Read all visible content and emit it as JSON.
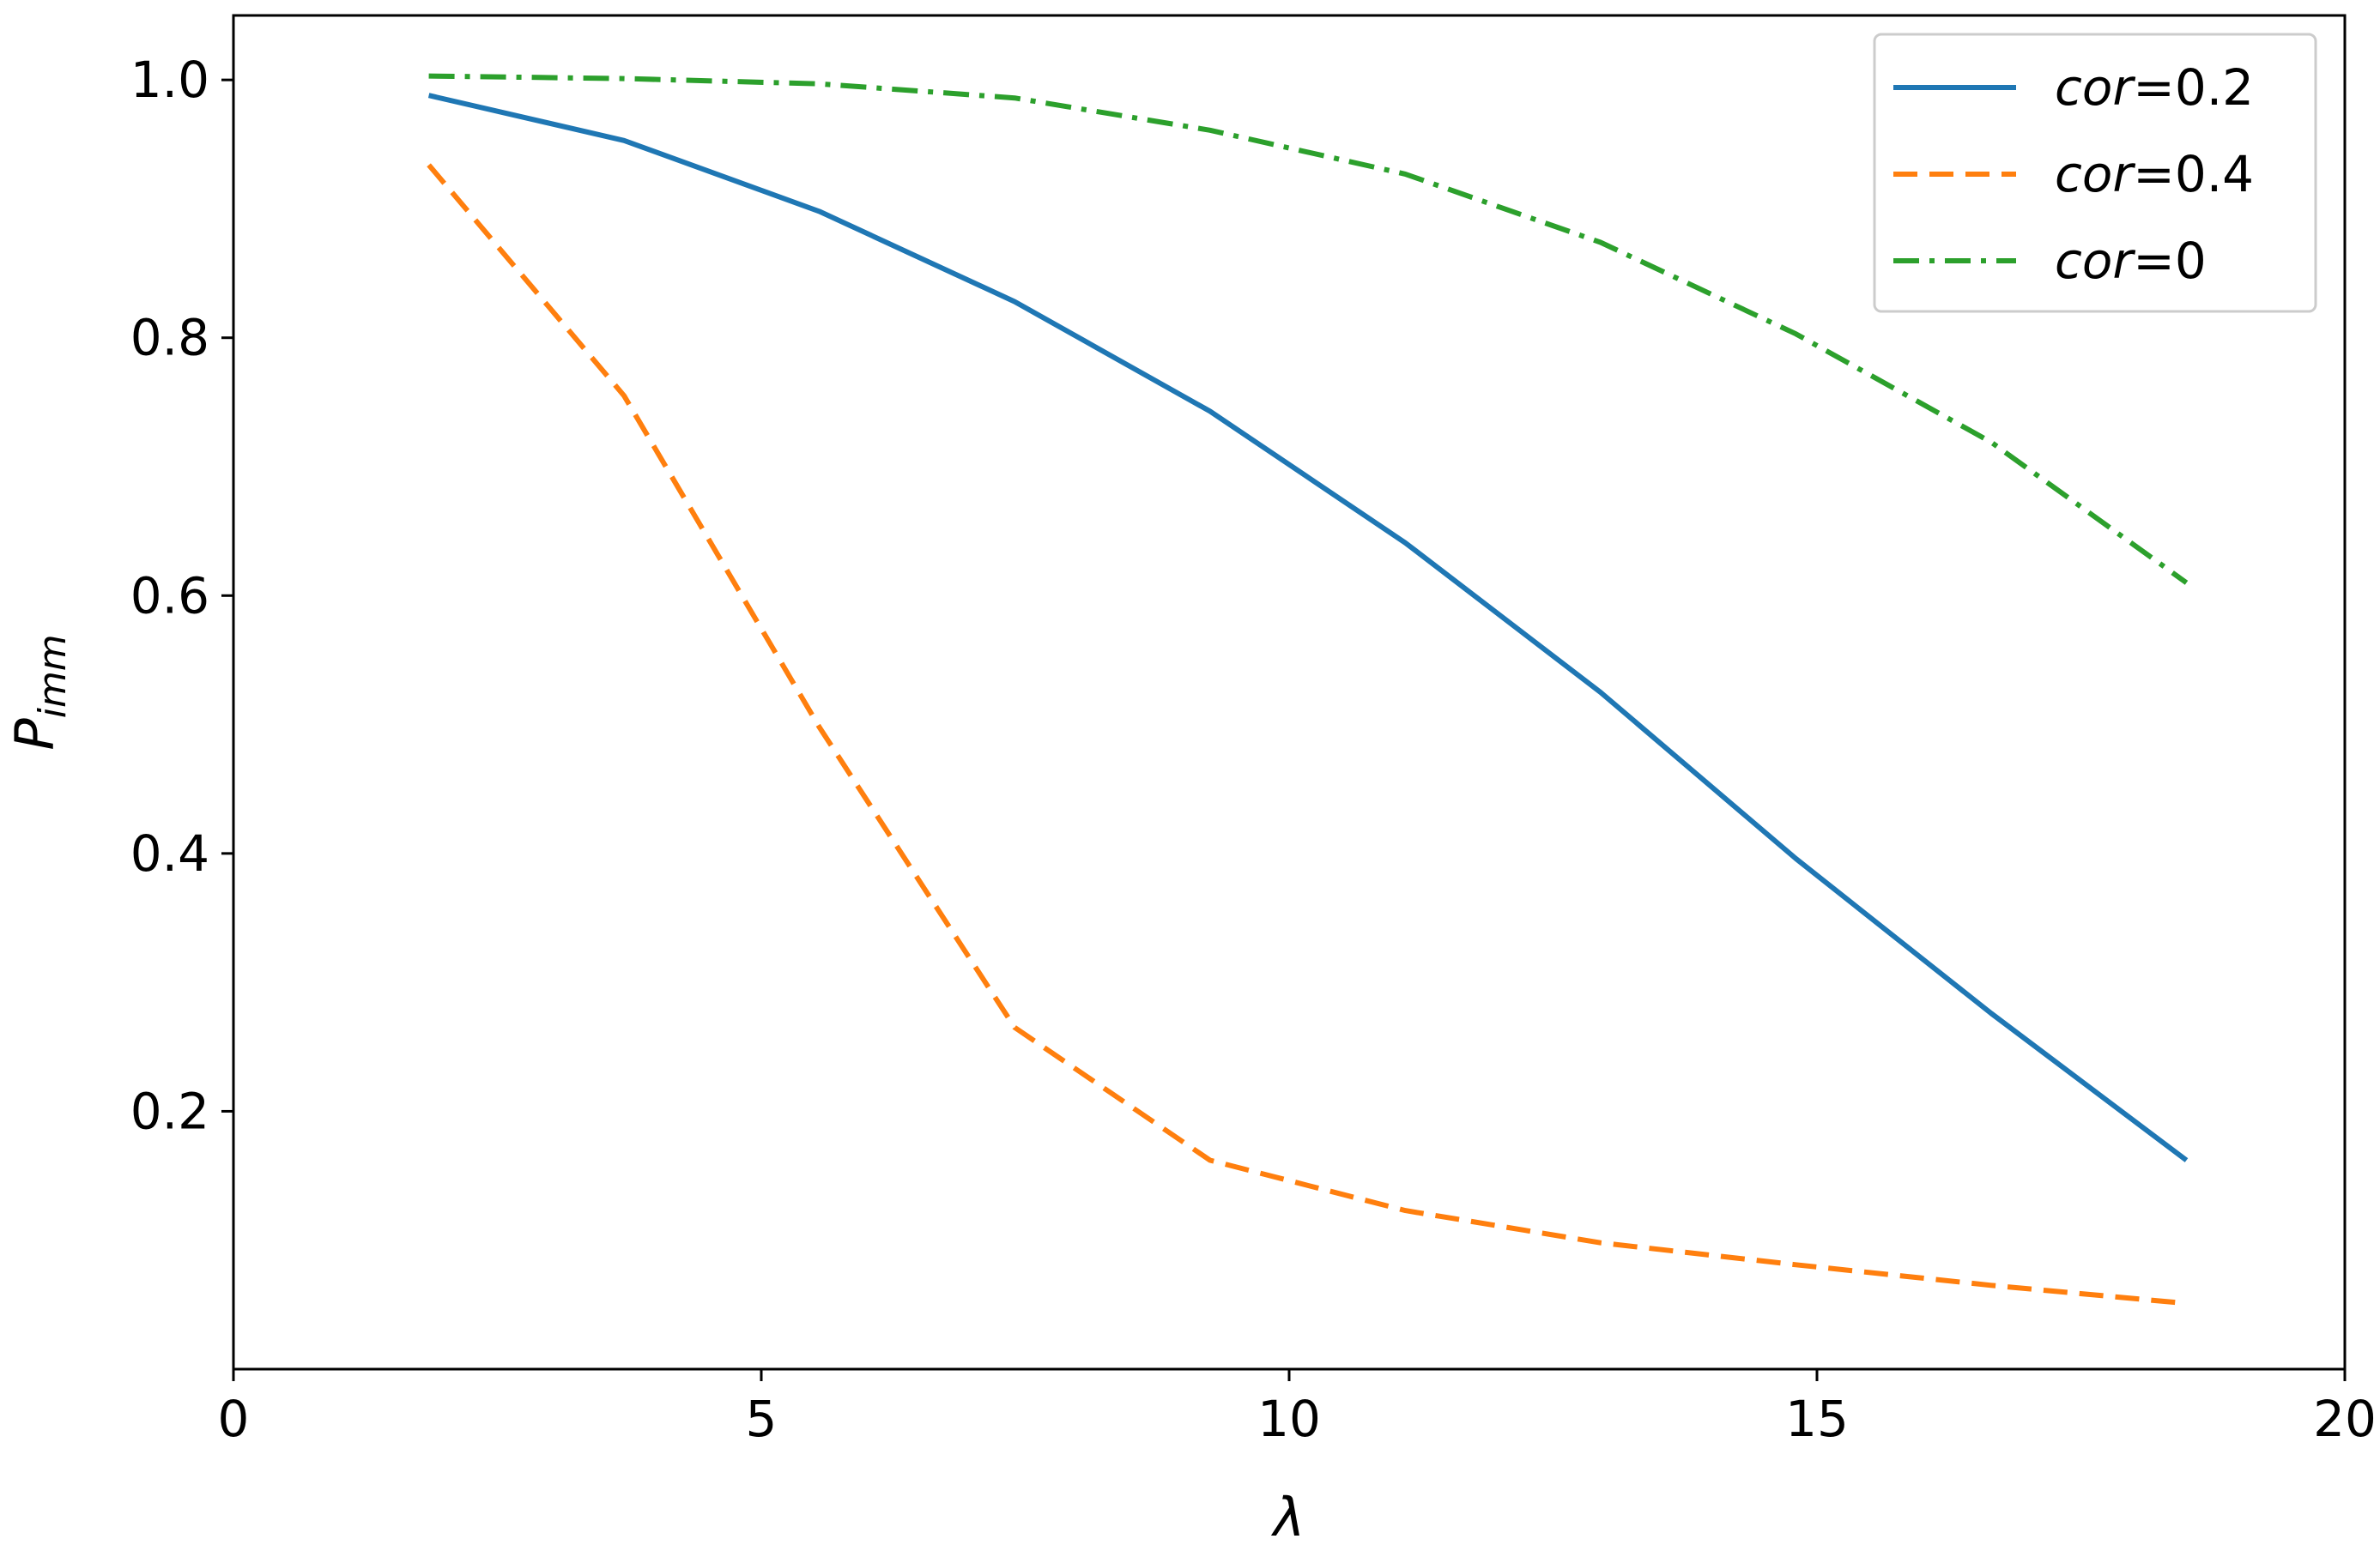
{
  "chart_data": {
    "type": "line",
    "title": "",
    "xlabel": "λ",
    "ylabel_base": "P",
    "ylabel_sub": "imm",
    "xlim": [
      0,
      20
    ],
    "ylim": [
      0.0,
      1.05
    ],
    "xticks": [
      0,
      5,
      10,
      15,
      20
    ],
    "xtick_labels": [
      "0",
      "5",
      "10",
      "15",
      "20"
    ],
    "yticks": [
      0.2,
      0.4,
      0.6,
      0.8,
      1.0
    ],
    "ytick_labels": [
      "0.2",
      "0.4",
      "0.6",
      "0.8",
      "1.0"
    ],
    "grid": false,
    "legend_position": "top-right",
    "x": [
      1.85,
      3.7,
      5.55,
      7.4,
      9.25,
      11.1,
      12.95,
      14.8,
      16.65,
      18.5
    ],
    "series": [
      {
        "name_prefix": "cor",
        "name_suffix": "=0.2",
        "color": "#1f77b4",
        "dash": "solid",
        "values": [
          0.988,
          0.953,
          0.898,
          0.828,
          0.743,
          0.641,
          0.525,
          0.396,
          0.276,
          0.162
        ]
      },
      {
        "name_prefix": "cor",
        "name_suffix": "=0.4",
        "color": "#ff7f0e",
        "dash": "dashed",
        "values": [
          0.934,
          0.755,
          0.498,
          0.265,
          0.162,
          0.123,
          0.098,
          0.081,
          0.065,
          0.051
        ]
      },
      {
        "name_prefix": "cor",
        "name_suffix": "=0",
        "color": "#2ca02c",
        "dash": "dashdot",
        "values": [
          1.003,
          1.001,
          0.997,
          0.986,
          0.961,
          0.927,
          0.874,
          0.803,
          0.719,
          0.61
        ]
      }
    ]
  }
}
